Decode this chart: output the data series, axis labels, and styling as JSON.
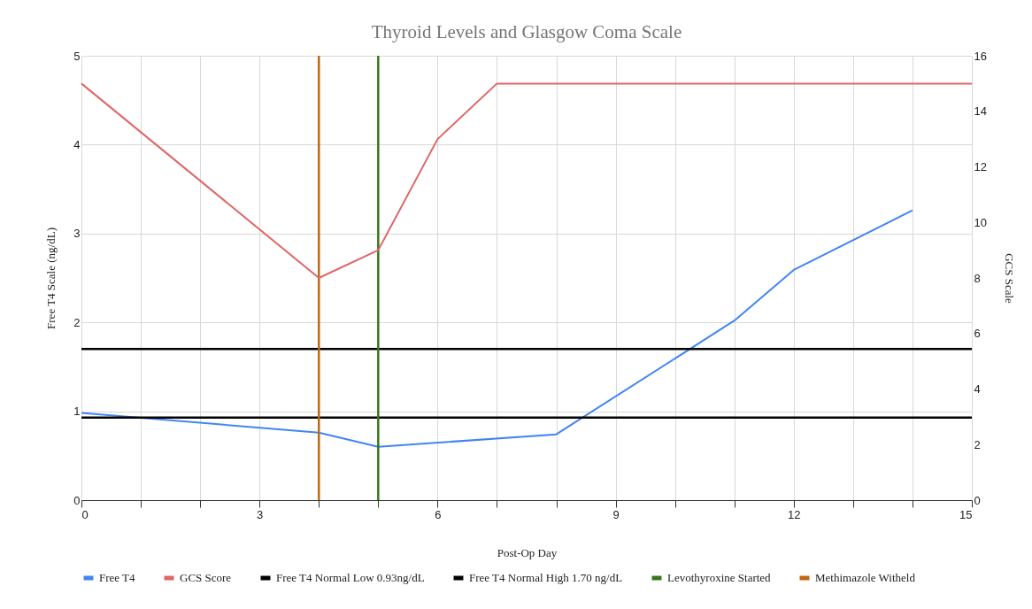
{
  "chart_data": {
    "type": "line",
    "title": "Thyroid Levels and Glasgow Coma Scale",
    "xlabel": "Post-Op Day",
    "ylabel": "Free T4 Scale (ng/dL)",
    "y2label": "GCS Scale",
    "xlim": [
      0,
      15
    ],
    "xticks": [
      0,
      {
        "value": 1,
        "label": null
      },
      {
        "value": 2,
        "label": null
      },
      3,
      {
        "value": 4,
        "label": null
      },
      {
        "value": 5,
        "label": null
      },
      6,
      {
        "value": 7,
        "label": null
      },
      {
        "value": 8,
        "label": null
      },
      9,
      {
        "value": 10,
        "label": null
      },
      {
        "value": 11,
        "label": null
      },
      12,
      {
        "value": 13,
        "label": null
      },
      {
        "value": 14,
        "label": null
      },
      15
    ],
    "ylim": [
      0,
      5
    ],
    "yticks": [
      0,
      1,
      2,
      3,
      4,
      5
    ],
    "y2lim": [
      0,
      16
    ],
    "y2ticks": [
      0,
      2,
      4,
      6,
      8,
      10,
      12,
      14,
      16
    ],
    "series": [
      {
        "name": "Free T4",
        "color": "#4285f4",
        "x": [
          0,
          4,
          5,
          8,
          11,
          12,
          14
        ],
        "values": [
          0.98,
          0.76,
          0.6,
          0.74,
          2.02,
          2.59,
          3.26
        ]
      },
      {
        "name": "GCS Score",
        "color": "#e06666",
        "axis": "y2",
        "x": [
          0,
          4,
          5,
          6,
          7,
          15
        ],
        "values": [
          15,
          8,
          9,
          13,
          15,
          15
        ]
      }
    ],
    "ref_lines": [
      {
        "axis": "y",
        "value": 0.93,
        "label": "Free T4 Normal Low 0.93ng/dL",
        "color": "#000000"
      },
      {
        "axis": "y",
        "value": 1.7,
        "label": "Free T4 Normal High 1.70 ng/dL",
        "color": "#000000"
      },
      {
        "axis": "x",
        "value": 5,
        "label": "Levothyroxine Started",
        "color": "#38761d"
      },
      {
        "axis": "x",
        "value": 4,
        "label": "Methimazole Witheld",
        "color": "#c0680f"
      }
    ],
    "grid": true,
    "legend": "bottom"
  }
}
